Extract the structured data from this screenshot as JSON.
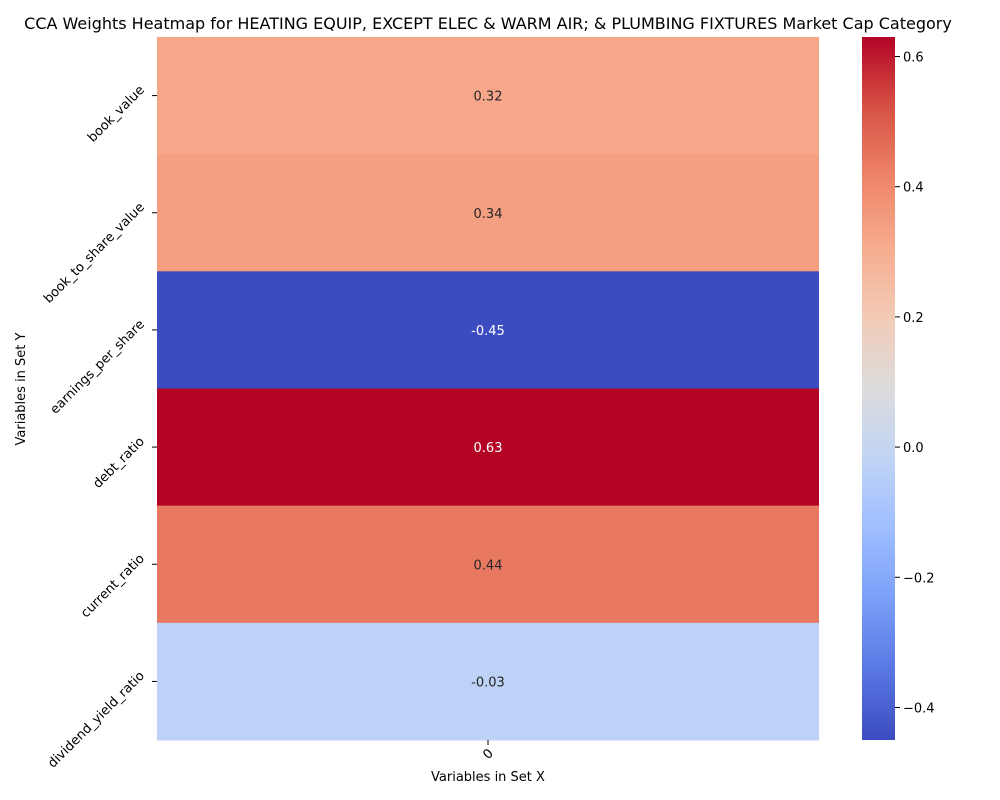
{
  "chart_data": {
    "type": "heatmap",
    "title": "CCA Weights Heatmap for HEATING EQUIP, EXCEPT ELEC & WARM AIR; & PLUMBING FIXTURES Market Cap Category",
    "xlabel": "Variables in Set X",
    "ylabel": "Variables in Set Y",
    "x_categories": [
      "0"
    ],
    "y_categories": [
      "book_value",
      "book_to_share_value",
      "earnings_per_share",
      "debt_ratio",
      "current_ratio",
      "dividend_yield_ratio"
    ],
    "values": [
      [
        0.32
      ],
      [
        0.34
      ],
      [
        -0.45
      ],
      [
        0.63
      ],
      [
        0.44
      ],
      [
        -0.03
      ]
    ],
    "annotations": [
      "0.32",
      "0.34",
      "-0.45",
      "0.63",
      "0.44",
      "-0.03"
    ],
    "colormap": "coolwarm",
    "vmin": -0.45,
    "vmax": 0.63,
    "colorbar_ticks": [
      -0.4,
      -0.2,
      0.0,
      0.2,
      0.4,
      0.6
    ],
    "colorbar_tick_labels": [
      "−0.4",
      "−0.2",
      "0.0",
      "0.2",
      "0.4",
      "0.6"
    ],
    "grid": false,
    "legend": "colorbar-right"
  }
}
